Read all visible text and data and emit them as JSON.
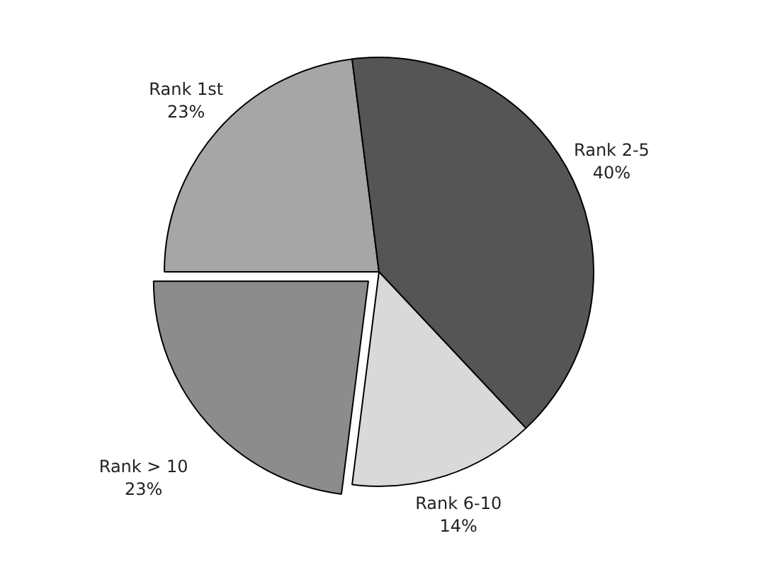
{
  "chart_data": {
    "type": "pie",
    "categories": [
      "Rank 1st",
      "Rank 2-5",
      "Rank 6-10",
      "Rank > 10"
    ],
    "values": [
      23,
      40,
      14,
      23
    ],
    "colors": [
      "#a6a6a6",
      "#555555",
      "#d9d9d9",
      "#8c8c8c"
    ],
    "value_labels": [
      "23%",
      "40%",
      "14%",
      "23%"
    ]
  }
}
